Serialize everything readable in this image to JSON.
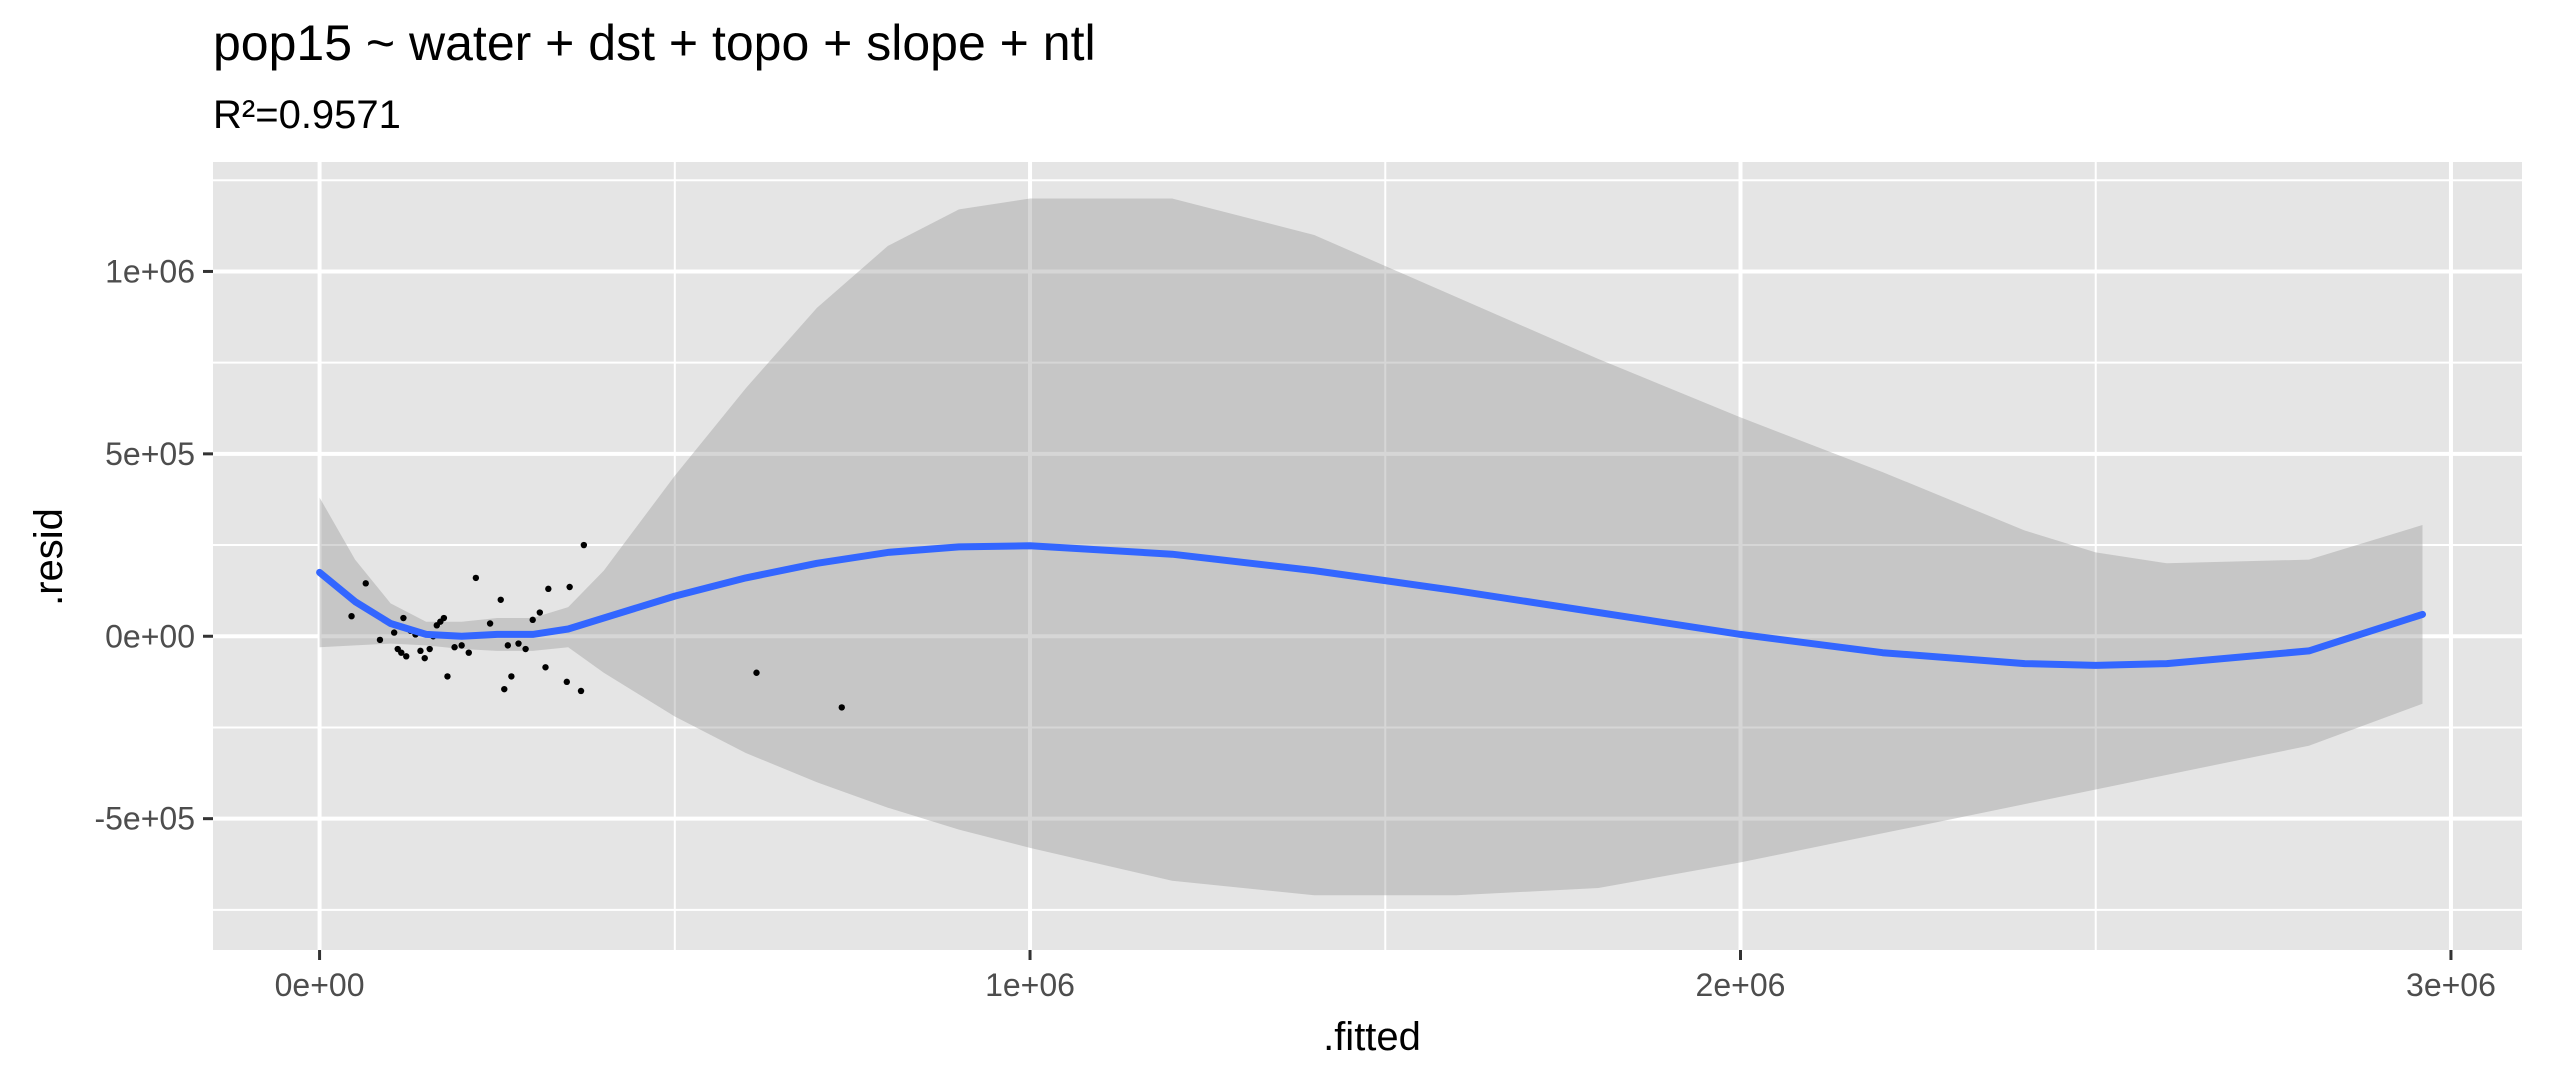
{
  "chart_data": {
    "type": "scatter",
    "title": "pop15 ~ water + dst + topo + slope + ntl",
    "subtitle": "R²=0.9571",
    "xlabel": ".fitted",
    "ylabel": ".resid",
    "xlim": [
      -150000,
      3100000
    ],
    "ylim": [
      -860000,
      1300000
    ],
    "x_ticks": [
      {
        "value": 0,
        "label": "0e+00"
      },
      {
        "value": 1000000,
        "label": "1e+06"
      },
      {
        "value": 2000000,
        "label": "2e+06"
      },
      {
        "value": 3000000,
        "label": "3e+06"
      }
    ],
    "y_ticks": [
      {
        "value": -500000,
        "label": "-5e+05"
      },
      {
        "value": 0,
        "label": "0e+00"
      },
      {
        "value": 500000,
        "label": "5e+05"
      },
      {
        "value": 1000000,
        "label": "1e+06"
      }
    ],
    "x_minor_breaks": [
      500000,
      1500000,
      2500000
    ],
    "y_minor_breaks": [
      -750000,
      -250000,
      250000,
      750000,
      1250000
    ],
    "grid": true,
    "colors": {
      "panel": "#e5e5e5",
      "grid": "#ffffff",
      "points": "#000000",
      "smooth_line": "#3366ff",
      "ribbon": "#999999"
    },
    "points": [
      {
        "x": 45000,
        "y": 55000
      },
      {
        "x": 65000,
        "y": 145000
      },
      {
        "x": 85000,
        "y": -10000
      },
      {
        "x": 105000,
        "y": 10000
      },
      {
        "x": 110000,
        "y": -35000
      },
      {
        "x": 115000,
        "y": -45000
      },
      {
        "x": 118000,
        "y": 50000
      },
      {
        "x": 122000,
        "y": -55000
      },
      {
        "x": 128000,
        "y": 15000
      },
      {
        "x": 135000,
        "y": 5000
      },
      {
        "x": 142000,
        "y": -40000
      },
      {
        "x": 148000,
        "y": -60000
      },
      {
        "x": 155000,
        "y": -35000
      },
      {
        "x": 160000,
        "y": 0
      },
      {
        "x": 165000,
        "y": 30000
      },
      {
        "x": 170000,
        "y": 40000
      },
      {
        "x": 175000,
        "y": 50000
      },
      {
        "x": 180000,
        "y": -110000
      },
      {
        "x": 190000,
        "y": -30000
      },
      {
        "x": 200000,
        "y": -25000
      },
      {
        "x": 210000,
        "y": -45000
      },
      {
        "x": 220000,
        "y": 160000
      },
      {
        "x": 240000,
        "y": 35000
      },
      {
        "x": 255000,
        "y": 100000
      },
      {
        "x": 260000,
        "y": -145000
      },
      {
        "x": 265000,
        "y": -25000
      },
      {
        "x": 270000,
        "y": -110000
      },
      {
        "x": 280000,
        "y": -20000
      },
      {
        "x": 290000,
        "y": -35000
      },
      {
        "x": 300000,
        "y": 45000
      },
      {
        "x": 310000,
        "y": 65000
      },
      {
        "x": 318000,
        "y": -85000
      },
      {
        "x": 322000,
        "y": 130000
      },
      {
        "x": 348000,
        "y": -125000
      },
      {
        "x": 352000,
        "y": 135000
      },
      {
        "x": 368000,
        "y": -150000
      },
      {
        "x": 372000,
        "y": 250000
      },
      {
        "x": 615000,
        "y": -100000
      },
      {
        "x": 735000,
        "y": -195000
      }
    ],
    "smooth": {
      "x": [
        0,
        50000,
        100000,
        150000,
        200000,
        250000,
        300000,
        350000,
        400000,
        500000,
        600000,
        700000,
        800000,
        900000,
        1000000,
        1200000,
        1400000,
        1600000,
        1800000,
        2000000,
        2200000,
        2400000,
        2500000,
        2600000,
        2800000,
        2960000
      ],
      "y": [
        175000,
        95000,
        35000,
        5000,
        0,
        5000,
        5000,
        20000,
        50000,
        110000,
        160000,
        200000,
        230000,
        245000,
        248000,
        225000,
        180000,
        125000,
        65000,
        5000,
        -45000,
        -75000,
        -80000,
        -75000,
        -40000,
        60000
      ],
      "lower": [
        -30000,
        -25000,
        -20000,
        -25000,
        -35000,
        -40000,
        -40000,
        -30000,
        -100000,
        -220000,
        -320000,
        -400000,
        -470000,
        -530000,
        -580000,
        -670000,
        -710000,
        -710000,
        -690000,
        -620000,
        -540000,
        -460000,
        -420000,
        -380000,
        -300000,
        -185000
      ],
      "upper": [
        380000,
        210000,
        90000,
        40000,
        40000,
        50000,
        50000,
        80000,
        180000,
        440000,
        680000,
        900000,
        1070000,
        1170000,
        1200000,
        1200000,
        1100000,
        930000,
        760000,
        600000,
        450000,
        290000,
        230000,
        200000,
        210000,
        305000
      ]
    }
  }
}
